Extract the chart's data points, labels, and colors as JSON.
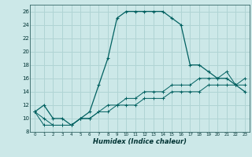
{
  "xlabel": "Humidex (Indice chaleur)",
  "bg_color": "#cce8e8",
  "grid_color": "#b0d4d4",
  "line_color": "#006060",
  "x_hours": [
    0,
    1,
    2,
    3,
    4,
    5,
    6,
    7,
    8,
    9,
    10,
    11,
    12,
    13,
    14,
    15,
    16,
    17,
    18,
    19,
    20,
    21,
    22,
    23
  ],
  "curve1": [
    11,
    12,
    10,
    10,
    9,
    10,
    11,
    15,
    19,
    25,
    26,
    26,
    26,
    26,
    26,
    25,
    24,
    18,
    18,
    17,
    16,
    16,
    15,
    14
  ],
  "curve2": [
    11,
    9,
    9,
    9,
    9,
    10,
    10,
    11,
    12,
    12,
    13,
    13,
    14,
    14,
    14,
    15,
    15,
    15,
    16,
    16,
    16,
    17,
    15,
    16
  ],
  "curve3": [
    11,
    10,
    9,
    9,
    9,
    10,
    10,
    11,
    11,
    12,
    12,
    12,
    13,
    13,
    13,
    14,
    14,
    14,
    14,
    15,
    15,
    15,
    15,
    15
  ],
  "ylim": [
    8,
    27
  ],
  "yticks": [
    8,
    10,
    12,
    14,
    16,
    18,
    20,
    22,
    24,
    26
  ],
  "xlim": [
    -0.5,
    23.5
  ],
  "xticks": [
    0,
    1,
    2,
    3,
    4,
    5,
    6,
    7,
    8,
    9,
    10,
    11,
    12,
    13,
    14,
    15,
    16,
    17,
    18,
    19,
    20,
    21,
    22,
    23
  ]
}
